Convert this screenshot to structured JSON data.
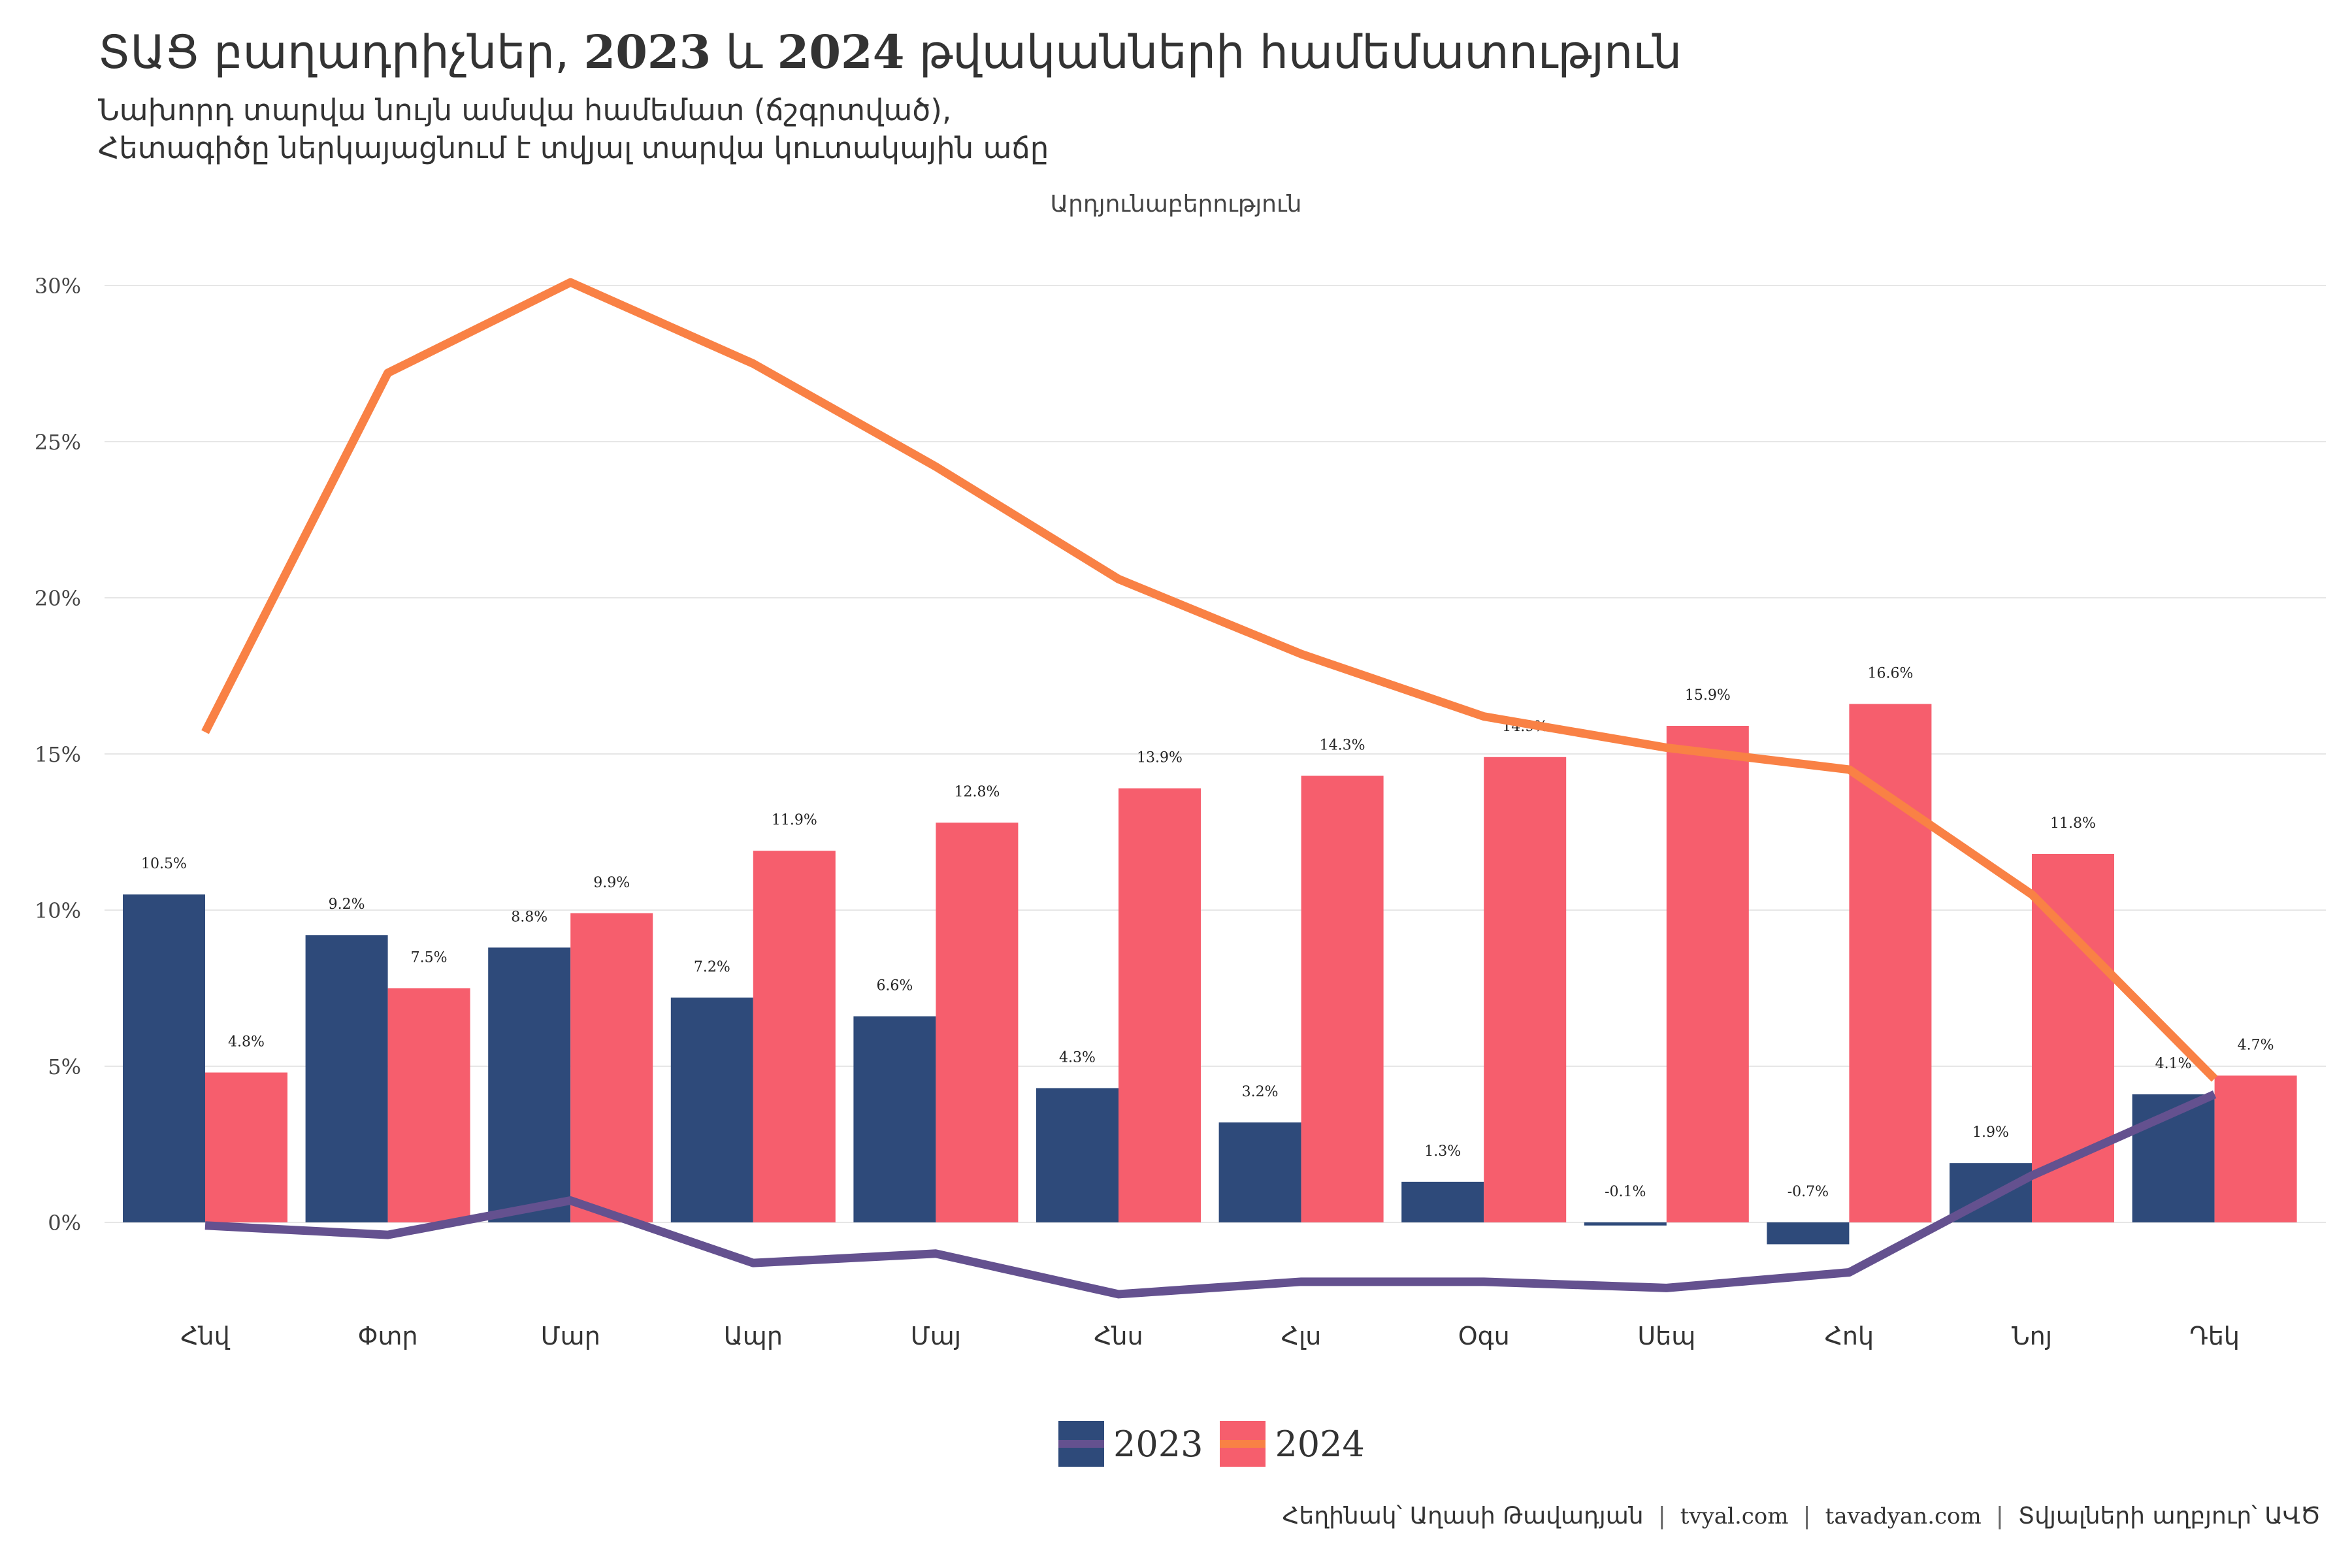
{
  "title_parts": {
    "a": "ՏԱՑ բաղադրիչներ, ",
    "y1": "2023",
    "b": " և ",
    "y2": "2024",
    "c": " թվականների համեմատություն"
  },
  "subtitle": "Նախորդ տարվա նույն ամսվա համեմատ (ճշգրտված),\nՀետագիծը ներկայացնում է տվյալ տարվա կուտակային աճը",
  "facet_label": "Արդյունաբերություն",
  "legend": [
    "2023",
    "2024"
  ],
  "caption": {
    "author": "Հեղինակ՝ Աղասի Թավադյան",
    "site1": "tvyal.com",
    "site2": "tavadyan.com",
    "source": "Տվյալների աղբյուր՝ ԱՎԾ",
    "sep": "|"
  },
  "colors": {
    "bar_2023": "#2e4a7a",
    "bar_2024": "#f65e6d",
    "line_2023": "#64518f",
    "line_2024": "#f98145",
    "grid": "#e6e6e6"
  },
  "chart_data": {
    "type": "bar",
    "categories": [
      "Հնվ",
      "Փտր",
      "Մար",
      "Ապր",
      "Մայ",
      "Հնս",
      "Հլս",
      "Օգս",
      "Սեպ",
      "Հոկ",
      "Նոյ",
      "Դեկ"
    ],
    "series": [
      {
        "name": "2023",
        "values": [
          10.5,
          9.2,
          8.8,
          7.2,
          6.6,
          4.3,
          3.2,
          1.3,
          -0.1,
          -0.7,
          1.9,
          4.1
        ],
        "labels": [
          "10.5%",
          "9.2%",
          "8.8%",
          "7.2%",
          "6.6%",
          "4.3%",
          "3.2%",
          "1.3%",
          "-0.1%",
          "-0.7%",
          "1.9%",
          "4.1%"
        ]
      },
      {
        "name": "2024",
        "values": [
          4.8,
          7.5,
          9.9,
          11.9,
          12.8,
          13.9,
          14.3,
          14.9,
          15.9,
          16.6,
          11.8,
          4.7
        ],
        "labels": [
          "4.8%",
          "7.5%",
          "9.9%",
          "11.9%",
          "12.8%",
          "13.9%",
          "14.3%",
          "14.9%",
          "15.9%",
          "16.6%",
          "11.8%",
          "4.7%"
        ]
      }
    ],
    "lines": [
      {
        "name": "2023",
        "values": [
          -0.1,
          -0.4,
          0.7,
          -1.3,
          -1.0,
          -2.3,
          -1.9,
          -1.9,
          -2.1,
          -1.6,
          1.5,
          4.1
        ]
      },
      {
        "name": "2024",
        "values": [
          15.7,
          27.2,
          30.1,
          27.5,
          24.2,
          20.6,
          18.2,
          16.2,
          15.2,
          14.5,
          10.5,
          4.6
        ]
      }
    ],
    "y_ticks": [
      0,
      5,
      10,
      15,
      20,
      25,
      30
    ],
    "y_tick_labels": [
      "0%",
      "5%",
      "10%",
      "15%",
      "20%",
      "25%",
      "30%"
    ],
    "ylim": [
      -3,
      30
    ],
    "grid": true,
    "legend_position": "bottom"
  }
}
